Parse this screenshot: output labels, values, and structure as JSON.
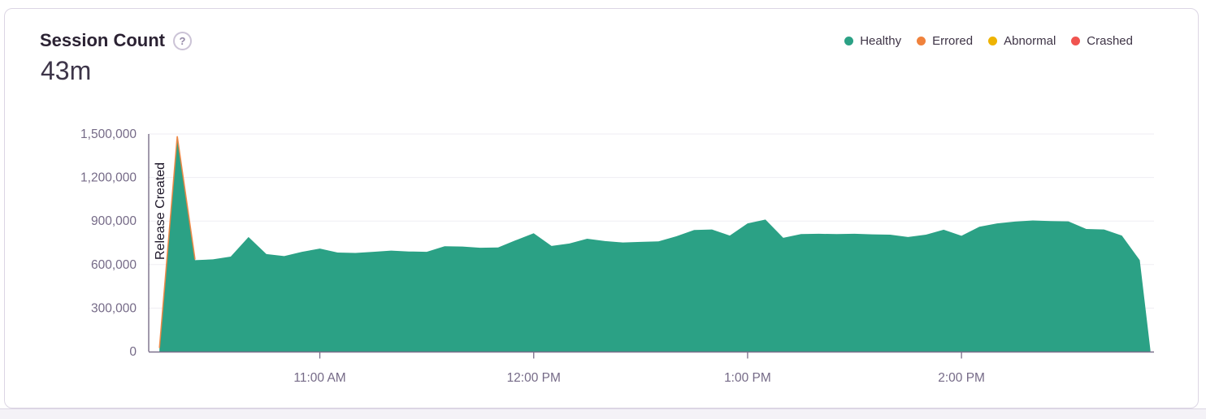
{
  "card": {
    "title": "Session Count",
    "help_icon_glyph": "?",
    "big_number": "43m"
  },
  "legend": [
    {
      "label": "Healthy",
      "color": "#2BA185"
    },
    {
      "label": "Errored",
      "color": "#F0823C"
    },
    {
      "label": "Abnormal",
      "color": "#EEB302"
    },
    {
      "label": "Crashed",
      "color": "#F05450"
    }
  ],
  "chart_data": {
    "type": "area",
    "title": "Session Count",
    "grid": true,
    "legend_position": "top-right",
    "ylim": [
      0,
      1500000
    ],
    "x_domain": [
      "10:12",
      "14:54"
    ],
    "y_ticks": [
      {
        "v": 0,
        "label": "0"
      },
      {
        "v": 300000,
        "label": "300,000"
      },
      {
        "v": 600000,
        "label": "600,000"
      },
      {
        "v": 900000,
        "label": "900,000"
      },
      {
        "v": 1200000,
        "label": "1,200,000"
      },
      {
        "v": 1500000,
        "label": "1,500,000"
      }
    ],
    "x_ticks": [
      {
        "t": "11:00",
        "label": "11:00 AM"
      },
      {
        "t": "12:00",
        "label": "12:00 PM"
      },
      {
        "t": "13:00",
        "label": "1:00 PM"
      },
      {
        "t": "14:00",
        "label": "2:00 PM"
      }
    ],
    "annotation": {
      "label": "Release Created",
      "t": "10:12"
    },
    "series": [
      {
        "name": "Healthy",
        "color": "#2BA185",
        "points": [
          [
            "10:15",
            20000
          ],
          [
            "10:20",
            1480000
          ],
          [
            "10:25",
            630000
          ],
          [
            "10:30",
            636000
          ],
          [
            "10:35",
            655000
          ],
          [
            "10:40",
            790000
          ],
          [
            "10:45",
            672000
          ],
          [
            "10:50",
            658000
          ],
          [
            "10:55",
            688000
          ],
          [
            "11:00",
            710000
          ],
          [
            "11:05",
            683000
          ],
          [
            "11:10",
            680000
          ],
          [
            "11:15",
            688000
          ],
          [
            "11:20",
            696000
          ],
          [
            "11:25",
            690000
          ],
          [
            "11:30",
            688000
          ],
          [
            "11:35",
            726000
          ],
          [
            "11:40",
            724000
          ],
          [
            "11:45",
            716000
          ],
          [
            "11:50",
            718000
          ],
          [
            "11:55",
            768000
          ],
          [
            "12:00",
            816000
          ],
          [
            "12:05",
            728000
          ],
          [
            "12:10",
            745000
          ],
          [
            "12:15",
            778000
          ],
          [
            "12:20",
            762000
          ],
          [
            "12:25",
            752000
          ],
          [
            "12:30",
            756000
          ],
          [
            "12:35",
            760000
          ],
          [
            "12:40",
            795000
          ],
          [
            "12:45",
            838000
          ],
          [
            "12:50",
            842000
          ],
          [
            "12:55",
            800000
          ],
          [
            "13:00",
            884000
          ],
          [
            "13:05",
            910000
          ],
          [
            "13:10",
            784000
          ],
          [
            "13:15",
            810000
          ],
          [
            "13:20",
            812000
          ],
          [
            "13:25",
            810000
          ],
          [
            "13:30",
            812000
          ],
          [
            "13:35",
            808000
          ],
          [
            "13:40",
            806000
          ],
          [
            "13:45",
            790000
          ],
          [
            "13:50",
            806000
          ],
          [
            "13:55",
            840000
          ],
          [
            "14:00",
            798000
          ],
          [
            "14:05",
            860000
          ],
          [
            "14:10",
            884000
          ],
          [
            "14:15",
            896000
          ],
          [
            "14:20",
            904000
          ],
          [
            "14:25",
            900000
          ],
          [
            "14:30",
            898000
          ],
          [
            "14:35",
            845000
          ],
          [
            "14:40",
            842000
          ],
          [
            "14:45",
            800000
          ],
          [
            "14:50",
            630000
          ],
          [
            "14:53",
            10000
          ]
        ]
      },
      {
        "name": "Errored",
        "color": "#F0823C",
        "note": "tiny stacked series visible as thin orange edge on the release spike",
        "points": [
          [
            "10:15",
            20000
          ],
          [
            "10:20",
            1480000
          ],
          [
            "10:25",
            630000
          ]
        ]
      }
    ]
  }
}
